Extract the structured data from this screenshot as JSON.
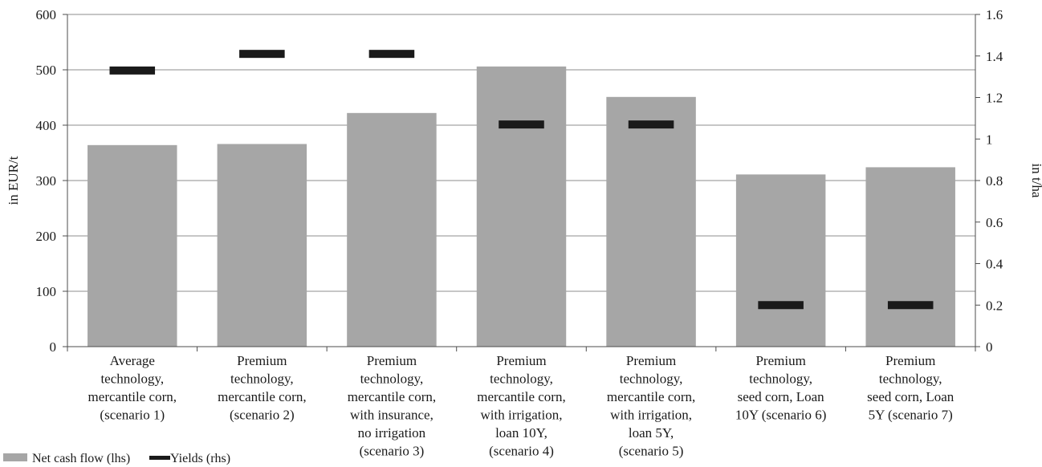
{
  "chart_data": {
    "type": "bar",
    "categories": [
      [
        "Average",
        "technology,",
        "mercantile corn,",
        "(scenario 1)"
      ],
      [
        "Premium",
        "technology,",
        "mercantile corn,",
        "(scenario 2)"
      ],
      [
        "Premium",
        "technology,",
        "mercantile corn,",
        "with insurance,",
        "no irrigation",
        "(scenario 3)"
      ],
      [
        "Premium",
        "technology,",
        "mercantile corn,",
        "with irrigation,",
        "loan 10Y,",
        "(scenario 4)"
      ],
      [
        "Premium",
        "technology,",
        "mercantile corn,",
        "with irrigation,",
        "loan 5Y,",
        "(scenario 5)"
      ],
      [
        "Premium",
        "technology,",
        "seed corn, Loan",
        "10Y (scenario 6)"
      ],
      [
        "Premium",
        "technology,",
        "seed corn, Loan",
        "5Y (scenario 7)"
      ]
    ],
    "series": [
      {
        "name": "Net cash flow (lhs)",
        "axis": "left",
        "kind": "bar",
        "color": "#a6a6a6",
        "values": [
          364,
          366,
          422,
          506,
          451,
          311,
          324
        ]
      },
      {
        "name": "Yields (rhs)",
        "axis": "right",
        "kind": "marker",
        "color": "#1a1a1a",
        "values": [
          1.33,
          1.41,
          1.41,
          1.07,
          1.07,
          0.2,
          0.2
        ]
      }
    ],
    "ylabel": "in EUR/t",
    "y2label": "in t/ha",
    "ylim": [
      0,
      600
    ],
    "y2lim": [
      0,
      1.6
    ],
    "yticks": [
      "0",
      "100",
      "200",
      "300",
      "400",
      "500",
      "600"
    ],
    "y2ticks": [
      "0",
      "0.2",
      "0.4",
      "0.6",
      "0.8",
      "1",
      "1.2",
      "1.4",
      "1.6"
    ],
    "grid": true,
    "legend_position": "bottom-left"
  }
}
